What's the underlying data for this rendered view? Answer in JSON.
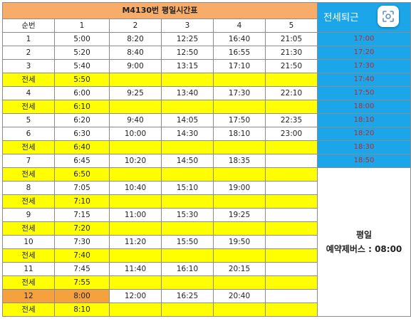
{
  "header": {
    "title": "M4130번 평일시간표",
    "commute_title": "전세퇴근",
    "columns": [
      "순번",
      "1",
      "2",
      "3",
      "4",
      "5"
    ]
  },
  "rows": [
    {
      "type": "regular",
      "cells": [
        "1",
        "5:00",
        "8:20",
        "12:25",
        "16:40",
        "21:05"
      ]
    },
    {
      "type": "regular",
      "cells": [
        "2",
        "5:20",
        "8:40",
        "12:50",
        "16:55",
        "21:30"
      ]
    },
    {
      "type": "regular",
      "cells": [
        "3",
        "5:40",
        "9:00",
        "13:15",
        "17:10",
        "21:50"
      ]
    },
    {
      "type": "charter",
      "cells": [
        "전세",
        "5:50",
        "",
        "",
        "",
        ""
      ]
    },
    {
      "type": "regular",
      "cells": [
        "4",
        "6:00",
        "9:25",
        "13:40",
        "17:30",
        "22:10"
      ]
    },
    {
      "type": "charter",
      "cells": [
        "전세",
        "6:10",
        "",
        "",
        "",
        ""
      ]
    },
    {
      "type": "regular",
      "cells": [
        "5",
        "6:20",
        "9:40",
        "14:05",
        "17:50",
        "22:35"
      ]
    },
    {
      "type": "regular",
      "cells": [
        "6",
        "6:30",
        "10:00",
        "14:30",
        "18:10",
        "23:00"
      ]
    },
    {
      "type": "charter",
      "cells": [
        "전세",
        "6:40",
        "",
        "",
        "",
        ""
      ]
    },
    {
      "type": "regular",
      "cells": [
        "7",
        "6:45",
        "10:20",
        "14:50",
        "18:35",
        ""
      ]
    },
    {
      "type": "charter",
      "cells": [
        "전세",
        "6:50",
        "",
        "",
        "",
        ""
      ]
    },
    {
      "type": "regular",
      "cells": [
        "8",
        "7:05",
        "10:40",
        "15:10",
        "19:00",
        ""
      ]
    },
    {
      "type": "charter",
      "cells": [
        "전세",
        "7:10",
        "",
        "",
        "",
        ""
      ]
    },
    {
      "type": "regular",
      "cells": [
        "9",
        "7:15",
        "11:00",
        "15:30",
        "19:25",
        ""
      ]
    },
    {
      "type": "charter",
      "cells": [
        "전세",
        "7:20",
        "",
        "",
        "",
        ""
      ]
    },
    {
      "type": "regular",
      "cells": [
        "10",
        "7:30",
        "11:20",
        "15:50",
        "19:50",
        ""
      ]
    },
    {
      "type": "charter",
      "cells": [
        "전세",
        "7:40",
        "",
        "",
        "",
        ""
      ]
    },
    {
      "type": "regular",
      "cells": [
        "11",
        "7:45",
        "11:40",
        "16:10",
        "20:15",
        ""
      ]
    },
    {
      "type": "charter",
      "cells": [
        "전세",
        "7:55",
        "",
        "",
        "",
        ""
      ]
    },
    {
      "type": "regular",
      "highlight": true,
      "cells": [
        "12",
        "8:00",
        "12:00",
        "16:25",
        "20:40",
        ""
      ]
    },
    {
      "type": "charter",
      "cells": [
        "전세",
        "8:10",
        "",
        "",
        "",
        ""
      ]
    }
  ],
  "commute_times": [
    "17:00",
    "17:20",
    "17:30",
    "17:40",
    "17:50",
    "18:00",
    "18:10",
    "18:20",
    "18:30",
    "18:50"
  ],
  "note": {
    "line1": "평일",
    "line2": "예약제버스 : 08:00"
  },
  "colors": {
    "title_bg": "#f7ac6a",
    "commute_bg": "#1aa6e8",
    "commute_text": "#c0282b",
    "charter_bg": "#ffff00",
    "highlight_bg": "#f4a13e"
  },
  "icons": {
    "visual_search": "lens-icon"
  }
}
